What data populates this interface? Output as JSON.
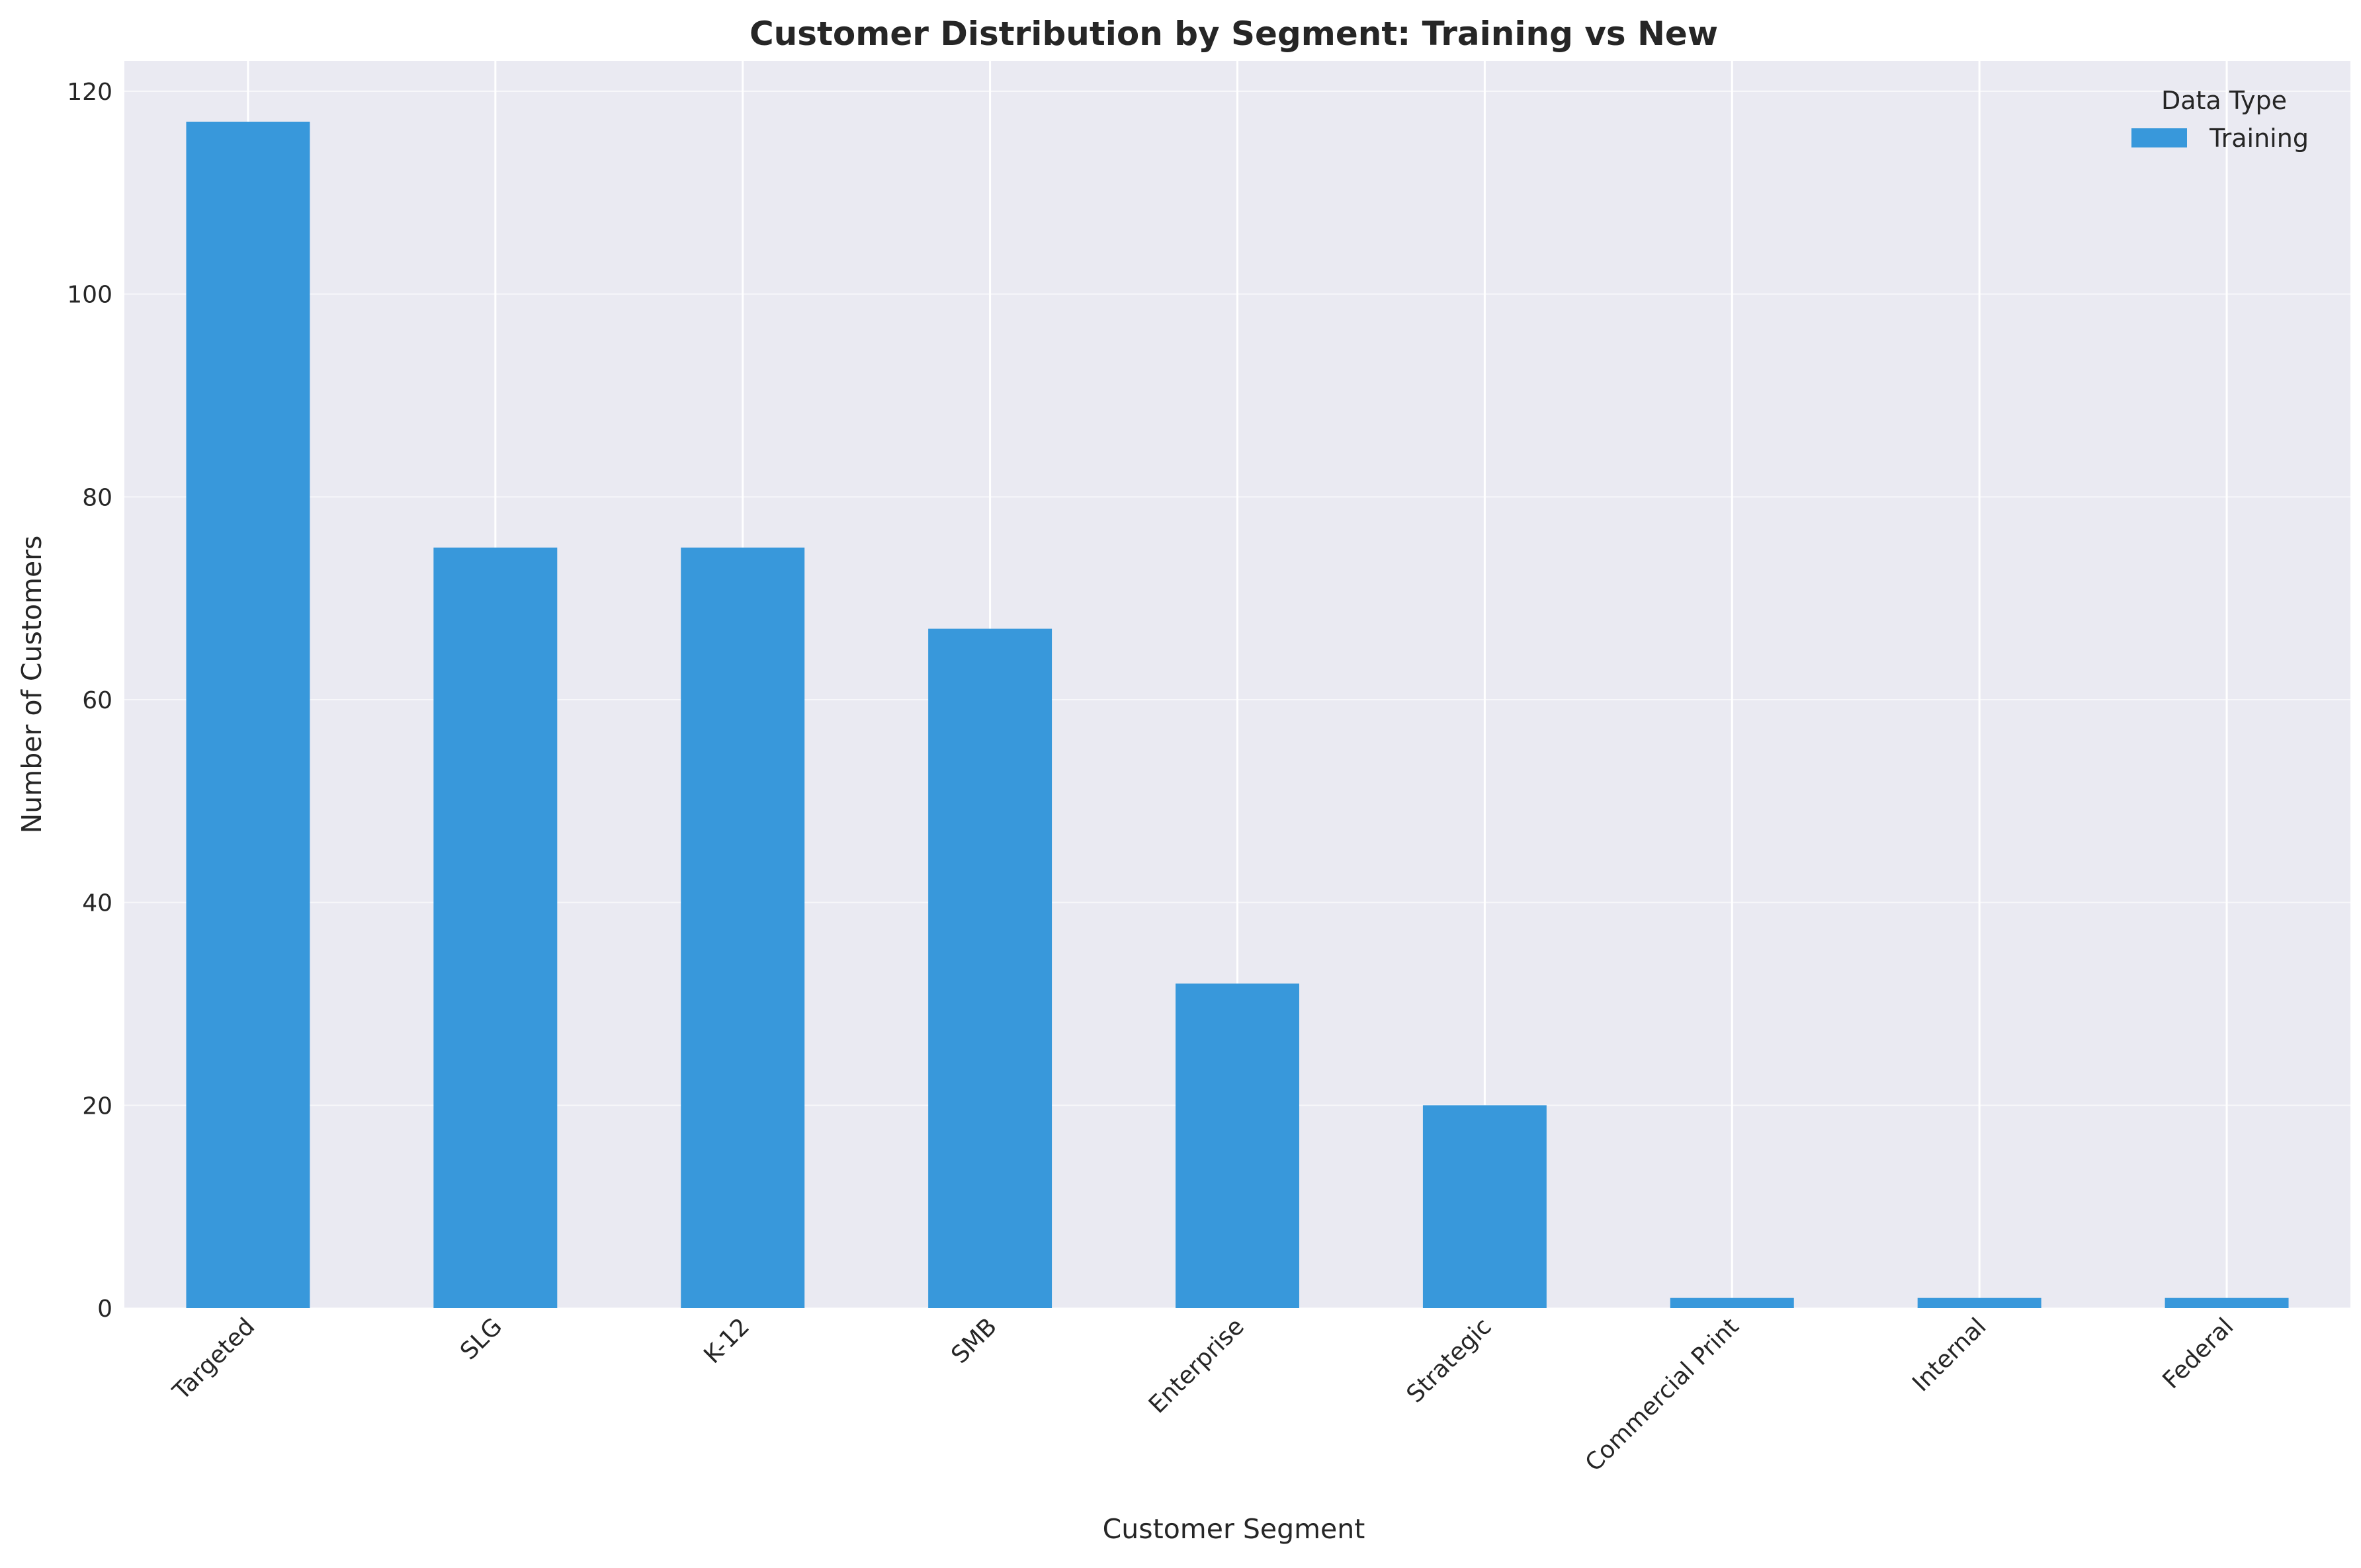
{
  "chart_data": {
    "type": "bar",
    "title": "Customer Distribution by Segment: Training vs New",
    "xlabel": "Customer Segment",
    "ylabel": "Number of Customers",
    "categories": [
      "Targeted",
      "SLG",
      "K-12",
      "SMB",
      "Enterprise",
      "Strategic",
      "Commercial Print",
      "Internal",
      "Federal"
    ],
    "series": [
      {
        "name": "Training",
        "values": [
          117,
          75,
          75,
          67,
          32,
          20,
          1,
          1,
          1
        ],
        "color": "#3898db"
      }
    ],
    "ylim": [
      0,
      123
    ],
    "yticks": [
      0,
      20,
      40,
      60,
      80,
      100,
      120
    ],
    "grid": true,
    "legend": {
      "title": "Data Type",
      "placement": "top-right"
    },
    "colors": {
      "plot_background": "#eaeaf2",
      "grid": "#ffffff",
      "text": "#262626"
    }
  }
}
